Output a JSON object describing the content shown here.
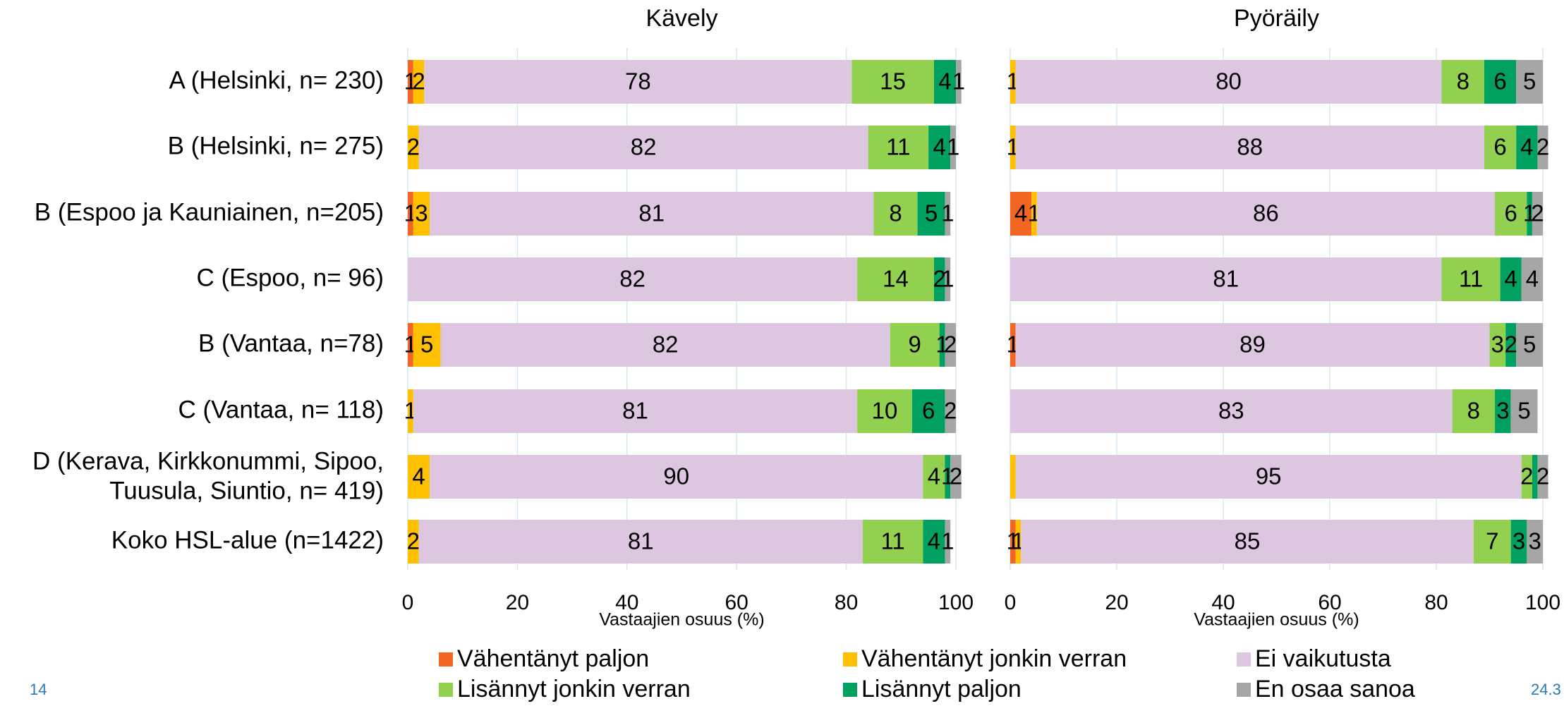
{
  "chart_data": [
    {
      "type": "stacked-bar",
      "title": "Kävely",
      "xlabel": "Vastaajien osuus (%)",
      "categories": [
        "A (Helsinki, n= 230)",
        "B (Helsinki, n= 275)",
        "B (Espoo ja Kauniainen, n=205)",
        "C (Espoo, n= 96)",
        "B (Vantaa, n=78)",
        "C (Vantaa, n= 118)",
        [
          "D (Kerava, Kirkkonummi, Sipoo,",
          "Tuusula, Siuntio, n= 419)"
        ],
        "Koko HSL-alue (n=1422)"
      ],
      "xlim": [
        0,
        100
      ],
      "xticks": [
        0,
        20,
        40,
        60,
        80,
        100
      ],
      "grid": true,
      "series": [
        {
          "name": "Vähentänyt paljon",
          "color": "#f26522",
          "values": [
            1,
            0,
            1,
            0,
            1,
            0,
            0,
            0
          ],
          "value_labels": [
            "1",
            null,
            "1",
            null,
            "1",
            null,
            null,
            null
          ]
        },
        {
          "name": "Vähentänyt jonkin verran",
          "color": "#ffc000",
          "values": [
            2,
            2,
            3,
            0,
            5,
            1,
            4,
            2
          ],
          "value_labels": [
            "2",
            "2",
            "3",
            null,
            "5",
            "1",
            "4",
            "2"
          ]
        },
        {
          "name": "Ei vaikutusta",
          "color": "#dcc6e0",
          "values": [
            78,
            82,
            81,
            82,
            82,
            81,
            90,
            81
          ],
          "value_labels": [
            "78",
            "82",
            "81",
            "82",
            "82",
            "81",
            "90",
            "81"
          ]
        },
        {
          "name": "Lisännyt jonkin verran",
          "color": "#92d050",
          "values": [
            15,
            11,
            8,
            14,
            9,
            10,
            4,
            11
          ],
          "value_labels": [
            "15",
            "11",
            "8",
            "14",
            "9",
            "10",
            "4",
            "11"
          ]
        },
        {
          "name": "Lisännyt paljon",
          "color": "#00a060",
          "values": [
            4,
            4,
            5,
            2,
            1,
            6,
            1,
            4
          ],
          "value_labels": [
            "4",
            "4",
            "5",
            "2",
            "1",
            "6",
            "1",
            "4"
          ]
        },
        {
          "name": "En osaa sanoa",
          "color": "#a6a6a6",
          "values": [
            1,
            1,
            1,
            1,
            2,
            2,
            2,
            1
          ],
          "value_labels": [
            "1",
            "1",
            "1",
            "1",
            "2",
            "2",
            "2",
            "1"
          ]
        }
      ]
    },
    {
      "type": "stacked-bar",
      "title": "Pyöräily",
      "xlabel": "Vastaajien osuus (%)",
      "xlim": [
        0,
        100
      ],
      "xticks": [
        0,
        20,
        40,
        60,
        80,
        100
      ],
      "grid": true,
      "series": [
        {
          "name": "Vähentänyt paljon",
          "color": "#f26522",
          "values": [
            0,
            0,
            4,
            0,
            1,
            0,
            0,
            1
          ],
          "value_labels": [
            null,
            null,
            "4",
            null,
            "1",
            null,
            null,
            "1"
          ]
        },
        {
          "name": "Vähentänyt jonkin verran",
          "color": "#ffc000",
          "values": [
            1,
            1,
            1,
            0,
            0,
            0,
            1,
            1
          ],
          "value_labels": [
            "1",
            "1",
            "1",
            null,
            null,
            null,
            null,
            "1"
          ]
        },
        {
          "name": "Ei vaikutusta",
          "color": "#dcc6e0",
          "values": [
            80,
            88,
            86,
            81,
            89,
            83,
            95,
            85
          ],
          "value_labels": [
            "80",
            "88",
            "86",
            "81",
            "89",
            "83",
            "95",
            "85"
          ]
        },
        {
          "name": "Lisännyt jonkin verran",
          "color": "#92d050",
          "values": [
            8,
            6,
            6,
            11,
            3,
            8,
            2,
            7
          ],
          "value_labels": [
            "8",
            "6",
            "6",
            "11",
            "3",
            "8",
            "2",
            "7"
          ]
        },
        {
          "name": "Lisännyt paljon",
          "color": "#00a060",
          "values": [
            6,
            4,
            1,
            4,
            2,
            3,
            1,
            3
          ],
          "value_labels": [
            "6",
            "4",
            "1",
            "4",
            "2",
            "3",
            null,
            "3"
          ]
        },
        {
          "name": "En osaa sanoa",
          "color": "#a6a6a6",
          "values": [
            5,
            2,
            2,
            4,
            5,
            5,
            2,
            3
          ],
          "value_labels": [
            "5",
            "2",
            "2",
            "4",
            "5",
            "5",
            "2",
            "3"
          ]
        }
      ]
    }
  ],
  "page_number": "14",
  "date": "24.3"
}
